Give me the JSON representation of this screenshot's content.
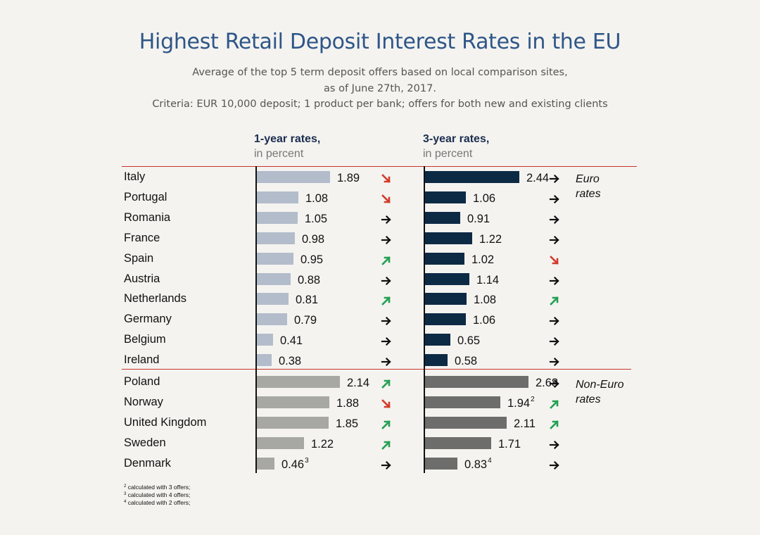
{
  "header": {
    "title": "Highest Retail Deposit Interest Rates in the EU",
    "subtitle_lines": [
      "Average of the top 5 term deposit offers based on local comparison sites,",
      "as of June 27th, 2017.",
      "Criteria: EUR 10,000 deposit; 1 product per bank; offers for both new and existing clients"
    ]
  },
  "columns": {
    "one_year": {
      "title": "1-year rates,",
      "subtitle": "in percent"
    },
    "three_year": {
      "title": "3-year rates,",
      "subtitle": "in percent"
    }
  },
  "groups": {
    "euro": {
      "label_line1": "Euro",
      "label_line2": "rates"
    },
    "non_euro": {
      "label_line1": "Non-Euro",
      "label_line2": "rates"
    }
  },
  "colors": {
    "euro_1y": "#b3bccb",
    "euro_3y": "#0d2a45",
    "noneuro_1y": "#a7a7a4",
    "noneuro_3y": "#6d6d6b",
    "arrow_up": "#23a052",
    "arrow_down": "#d23b2a",
    "arrow_flat": "#111111",
    "separator": "#c8342c"
  },
  "footnotes": [
    {
      "mark": "2",
      "text": "calculated with 3 offers;"
    },
    {
      "mark": "3",
      "text": "calculated with 4 offers;"
    },
    {
      "mark": "4",
      "text": "calculated with 2 offers;"
    }
  ],
  "chart_data": {
    "type": "bar",
    "title": "Highest Retail Deposit Interest Rates in the EU",
    "categories": [
      "Italy",
      "Portugal",
      "Romania",
      "France",
      "Spain",
      "Austria",
      "Netherlands",
      "Germany",
      "Belgium",
      "Ireland",
      "Poland",
      "Norway",
      "United Kingdom",
      "Sweden",
      "Denmark"
    ],
    "series": [
      {
        "name": "1-year rates, in percent",
        "values": [
          1.89,
          1.08,
          1.05,
          0.98,
          0.95,
          0.88,
          0.81,
          0.79,
          0.41,
          0.38,
          2.14,
          1.88,
          1.85,
          1.22,
          0.46
        ],
        "labels": [
          "1.89",
          "1.08",
          "1.05",
          "0.98",
          "0.95",
          "0.88",
          "0.81",
          "0.79",
          "0.41",
          "0.38",
          "2.14",
          "1.88",
          "1.85",
          "1.22",
          "0.46"
        ],
        "footnote_marks": [
          "",
          "",
          "",
          "",
          "",
          "",
          "",
          "",
          "",
          "",
          "",
          "",
          "",
          "",
          "3"
        ],
        "trend": [
          "down",
          "down",
          "flat",
          "flat",
          "up",
          "flat",
          "up",
          "flat",
          "flat",
          "flat",
          "up",
          "down",
          "up",
          "up",
          "flat"
        ]
      },
      {
        "name": "3-year rates, in percent",
        "values": [
          2.44,
          1.06,
          0.91,
          1.22,
          1.02,
          1.14,
          1.08,
          1.06,
          0.65,
          0.58,
          2.68,
          1.94,
          2.11,
          1.71,
          0.83
        ],
        "labels": [
          "2.44",
          "1.06",
          "0.91",
          "1.22",
          "1.02",
          "1.14",
          "1.08",
          "1.06",
          "0.65",
          "0.58",
          "2.68",
          "1.94",
          "2.11",
          "1.71",
          "0.83"
        ],
        "footnote_marks": [
          "",
          "",
          "",
          "",
          "",
          "",
          "",
          "",
          "",
          "",
          "",
          "2",
          "",
          "",
          "4"
        ],
        "trend": [
          "flat",
          "flat",
          "flat",
          "flat",
          "down",
          "flat",
          "up",
          "flat",
          "flat",
          "flat",
          "flat",
          "up",
          "up",
          "flat",
          "flat"
        ]
      }
    ],
    "groups": [
      {
        "name": "Euro rates",
        "count": 10
      },
      {
        "name": "Non-Euro rates",
        "count": 5
      }
    ],
    "orientation": "horizontal",
    "grid": false
  }
}
